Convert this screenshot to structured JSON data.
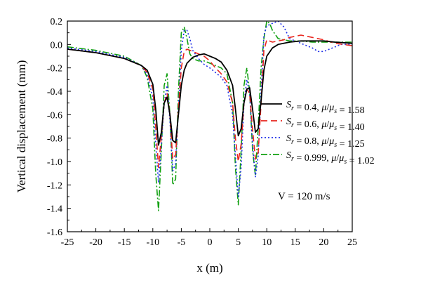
{
  "chart_data": {
    "type": "line",
    "xlabel": "x (m)",
    "ylabel": "Vertical displacement (mm)",
    "xlim": [
      -25,
      25
    ],
    "ylim": [
      -1.6,
      0.2
    ],
    "xticks": [
      -25,
      -20,
      -15,
      -10,
      -5,
      0,
      5,
      10,
      15,
      20,
      25
    ],
    "yticks": [
      -1.6,
      -1.4,
      -1.2,
      -1.0,
      -0.8,
      -0.6,
      -0.4,
      -0.2,
      0.0,
      0.2
    ],
    "ytick_labels": [
      "-1.6",
      "-1.4",
      "-1.2",
      "-1.0",
      "-0.8",
      "-0.6",
      "-0.4",
      "-0.2",
      "0.0",
      "0.2"
    ],
    "annotation": "V = 120 m/s",
    "legend_position": "right",
    "series": [
      {
        "name": "S_r = 0.4, μ/μ_s = 1.58",
        "legend": {
          "sr": "0.4",
          "ratio": "1.58"
        },
        "color": "#000000",
        "style": "solid",
        "x": [
          -25,
          -20,
          -15,
          -12,
          -11,
          -10,
          -9.5,
          -9,
          -8.5,
          -8,
          -7.5,
          -7,
          -6.5,
          -6,
          -5.5,
          -5,
          -4.5,
          -4,
          -3,
          -2,
          -1,
          0,
          1,
          2,
          3,
          4,
          4.5,
          5,
          5.5,
          6,
          6.5,
          7,
          7.5,
          8,
          8.5,
          9,
          9.5,
          10,
          11,
          12,
          14,
          16,
          18,
          20,
          22,
          25
        ],
        "y": [
          -0.04,
          -0.07,
          -0.12,
          -0.18,
          -0.22,
          -0.34,
          -0.55,
          -0.86,
          -0.75,
          -0.5,
          -0.45,
          -0.6,
          -0.82,
          -0.84,
          -0.6,
          -0.35,
          -0.22,
          -0.16,
          -0.11,
          -0.09,
          -0.08,
          -0.1,
          -0.12,
          -0.15,
          -0.22,
          -0.35,
          -0.55,
          -0.78,
          -0.72,
          -0.5,
          -0.38,
          -0.37,
          -0.55,
          -0.75,
          -0.72,
          -0.48,
          -0.22,
          -0.1,
          -0.03,
          0.0,
          0.02,
          0.03,
          0.03,
          0.03,
          0.02,
          0.01
        ]
      },
      {
        "name": "S_r = 0.6, μ/μ_s = 1.40",
        "legend": {
          "sr": "0.6",
          "ratio": "1.40"
        },
        "color": "#e8261e",
        "style": "dash",
        "x": [
          -25,
          -20,
          -15,
          -12,
          -11,
          -10,
          -9.5,
          -9,
          -8.5,
          -8,
          -7.5,
          -7,
          -6.5,
          -6,
          -5.5,
          -5,
          -4.5,
          -4,
          -3,
          -2,
          -1,
          0,
          1,
          2,
          3,
          4,
          4.5,
          5,
          5.5,
          6,
          6.5,
          7,
          7.5,
          8,
          8.5,
          9,
          9.5,
          10,
          11,
          12,
          13,
          14,
          16,
          18,
          20,
          22,
          25
        ],
        "y": [
          -0.04,
          -0.07,
          -0.12,
          -0.18,
          -0.24,
          -0.38,
          -0.7,
          -1.05,
          -0.78,
          -0.5,
          -0.42,
          -0.6,
          -0.98,
          -0.94,
          -0.55,
          -0.2,
          -0.06,
          -0.04,
          -0.06,
          -0.08,
          -0.1,
          -0.14,
          -0.2,
          -0.25,
          -0.32,
          -0.5,
          -0.8,
          -1.0,
          -0.85,
          -0.5,
          -0.38,
          -0.42,
          -0.72,
          -0.98,
          -0.92,
          -0.5,
          -0.05,
          0.04,
          0.02,
          0.03,
          0.04,
          0.06,
          0.08,
          0.06,
          0.04,
          0.01,
          -0.01
        ]
      },
      {
        "name": "S_r = 0.8, μ/μ_s = 1.25",
        "legend": {
          "sr": "0.8",
          "ratio": "1.25"
        },
        "color": "#1e2ee8",
        "style": "dot",
        "x": [
          -25,
          -20,
          -15,
          -12,
          -11,
          -10,
          -9.5,
          -9,
          -8.5,
          -8,
          -7.5,
          -7,
          -6.5,
          -6,
          -5.5,
          -5,
          -4.5,
          -4,
          -3.5,
          -3,
          -2,
          -1,
          0,
          1,
          2,
          3,
          4,
          4.5,
          5,
          5.5,
          6,
          6.5,
          7,
          7.5,
          8,
          8.5,
          9,
          9.5,
          10,
          11,
          12,
          13,
          14,
          15,
          16,
          17,
          18,
          19,
          20,
          21,
          22,
          23,
          25
        ],
        "y": [
          -0.03,
          -0.06,
          -0.11,
          -0.18,
          -0.26,
          -0.45,
          -0.85,
          -1.18,
          -0.85,
          -0.5,
          -0.35,
          -0.65,
          -1.08,
          -1.02,
          -0.55,
          -0.05,
          0.12,
          0.12,
          0.05,
          -0.05,
          -0.12,
          -0.17,
          -0.2,
          -0.24,
          -0.28,
          -0.35,
          -0.6,
          -0.95,
          -1.3,
          -1.05,
          -0.5,
          -0.3,
          -0.42,
          -0.85,
          -1.13,
          -0.95,
          -0.4,
          0.08,
          0.16,
          0.18,
          0.2,
          0.15,
          0.05,
          0.03,
          0.01,
          -0.01,
          -0.03,
          -0.06,
          -0.06,
          -0.04,
          -0.02,
          0.0,
          0.0
        ]
      },
      {
        "name": "S_r = 0.999, μ/μ_s = 1.02",
        "legend": {
          "sr": "0.999",
          "ratio": "1.02"
        },
        "color": "#12a012",
        "style": "dashdot",
        "x": [
          -25,
          -20,
          -15,
          -12,
          -11,
          -10,
          -9.5,
          -9,
          -8.5,
          -8,
          -7.5,
          -7,
          -6.5,
          -6,
          -5.5,
          -5,
          -4.5,
          -4,
          -3.5,
          -3,
          -2,
          -1,
          0,
          1,
          2,
          3,
          4,
          4.5,
          5,
          5.5,
          6,
          6.5,
          7,
          7.5,
          8,
          8.5,
          9,
          9.5,
          10,
          10.5,
          11,
          12,
          13,
          14,
          15,
          16,
          18,
          20,
          22,
          25
        ],
        "y": [
          -0.02,
          -0.05,
          -0.1,
          -0.18,
          -0.28,
          -0.55,
          -1.1,
          -1.42,
          -0.9,
          -0.35,
          -0.25,
          -0.6,
          -1.2,
          -1.15,
          -0.4,
          0.1,
          0.15,
          0.05,
          -0.08,
          -0.12,
          -0.14,
          -0.14,
          -0.16,
          -0.18,
          -0.2,
          -0.25,
          -0.5,
          -1.05,
          -1.37,
          -0.9,
          -0.35,
          -0.2,
          -0.4,
          -0.9,
          -1.12,
          -0.7,
          -0.2,
          0.05,
          0.2,
          0.18,
          0.12,
          0.05,
          0.04,
          0.03,
          0.03,
          0.03,
          0.02,
          0.02,
          0.02,
          0.02
        ]
      }
    ]
  }
}
